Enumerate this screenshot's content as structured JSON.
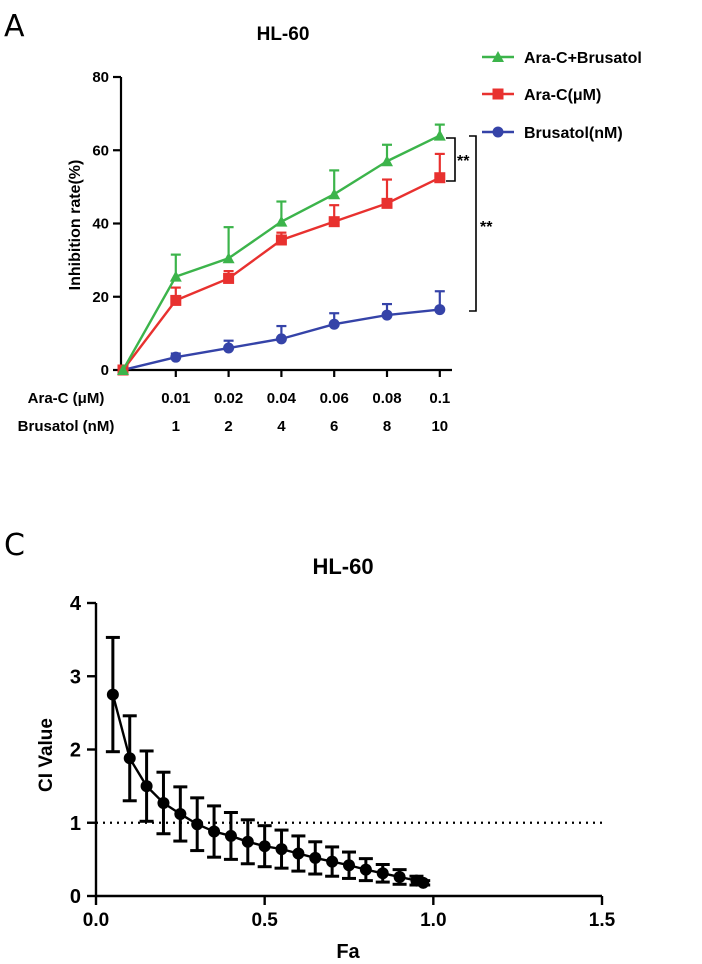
{
  "colors": {
    "green": "#3cb44b",
    "red": "#e8312f",
    "blue": "#3543a8",
    "black": "#000000"
  },
  "chart_data": [
    {
      "panel": "A",
      "type": "line",
      "title": "HL-60",
      "ylabel": "Inhibition rate(%)",
      "ylim": [
        0,
        80
      ],
      "yticks": [
        "0",
        "20",
        "40",
        "60",
        "80"
      ],
      "row_labels": [
        "Ara-C (μM)",
        "Brusatol (nM)"
      ],
      "categories_row1": [
        "",
        "0.01",
        "0.02",
        "0.04",
        "0.06",
        "0.08",
        "0.1"
      ],
      "categories_row2": [
        "",
        "1",
        "2",
        "4",
        "6",
        "8",
        "10"
      ],
      "series": [
        {
          "name": "Ara-C+Brusatol",
          "color": "green",
          "marker": "triangle",
          "values": [
            0,
            25.5,
            30.5,
            40.5,
            48,
            57,
            64
          ],
          "errors": [
            0,
            6,
            8.5,
            5.5,
            6.5,
            4.5,
            3
          ]
        },
        {
          "name": "Ara-C(μM)",
          "color": "red",
          "marker": "square",
          "values": [
            0,
            19,
            25,
            35.5,
            40.5,
            45.5,
            52.5
          ],
          "errors": [
            0,
            3.5,
            2,
            2,
            4.5,
            6.5,
            6.5
          ]
        },
        {
          "name": "Brusatol(nM)",
          "color": "blue",
          "marker": "circle",
          "values": [
            0,
            3.5,
            6,
            8.5,
            12.5,
            15,
            16.5
          ],
          "errors": [
            0,
            1,
            2,
            3.5,
            3,
            3,
            5
          ]
        }
      ],
      "significance": [
        "**",
        "**"
      ]
    },
    {
      "panel": "C",
      "type": "scatter",
      "title": "HL-60",
      "xlabel": "Fa",
      "ylabel": "CI Value",
      "xlim": [
        0,
        1.5
      ],
      "ylim": [
        0,
        4
      ],
      "xticks": [
        "0.0",
        "0.5",
        "1.0",
        "1.5"
      ],
      "yticks": [
        "0",
        "1",
        "2",
        "3",
        "4"
      ],
      "reference_line_y": 1,
      "points": [
        {
          "x": 0.05,
          "y": 2.75,
          "err": 0.78
        },
        {
          "x": 0.1,
          "y": 1.88,
          "err": 0.58
        },
        {
          "x": 0.15,
          "y": 1.5,
          "err": 0.48
        },
        {
          "x": 0.2,
          "y": 1.27,
          "err": 0.42
        },
        {
          "x": 0.25,
          "y": 1.12,
          "err": 0.37
        },
        {
          "x": 0.3,
          "y": 0.98,
          "err": 0.36
        },
        {
          "x": 0.35,
          "y": 0.88,
          "err": 0.35
        },
        {
          "x": 0.4,
          "y": 0.82,
          "err": 0.32
        },
        {
          "x": 0.45,
          "y": 0.74,
          "err": 0.3
        },
        {
          "x": 0.5,
          "y": 0.68,
          "err": 0.28
        },
        {
          "x": 0.55,
          "y": 0.64,
          "err": 0.26
        },
        {
          "x": 0.6,
          "y": 0.58,
          "err": 0.24
        },
        {
          "x": 0.65,
          "y": 0.52,
          "err": 0.22
        },
        {
          "x": 0.7,
          "y": 0.47,
          "err": 0.2
        },
        {
          "x": 0.75,
          "y": 0.42,
          "err": 0.18
        },
        {
          "x": 0.8,
          "y": 0.36,
          "err": 0.15
        },
        {
          "x": 0.85,
          "y": 0.31,
          "err": 0.12
        },
        {
          "x": 0.9,
          "y": 0.26,
          "err": 0.1
        },
        {
          "x": 0.95,
          "y": 0.21,
          "err": 0.06
        },
        {
          "x": 0.97,
          "y": 0.18,
          "err": 0.03
        }
      ]
    }
  ],
  "panel_labels": [
    "A",
    "C"
  ]
}
